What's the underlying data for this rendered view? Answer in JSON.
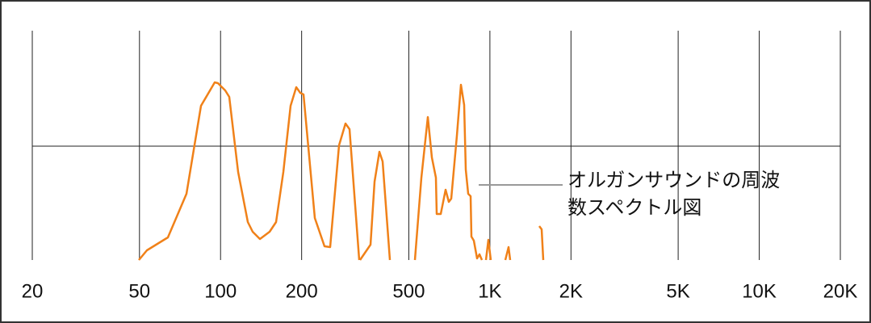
{
  "chart_data": {
    "type": "spectrum",
    "annotation": "オルガンサウンドの周波数スペクトル図",
    "xscale": "log",
    "xlim": [
      20,
      20000
    ],
    "xticks": [
      20,
      50,
      100,
      200,
      500,
      {
        "value": 1000,
        "label": "1K"
      },
      {
        "value": 2000,
        "label": "2K"
      },
      {
        "value": 5000,
        "label": "5K"
      },
      {
        "value": 10000,
        "label": "10K"
      },
      {
        "value": 20000,
        "label": "20K"
      }
    ],
    "color": "#f08119"
  }
}
